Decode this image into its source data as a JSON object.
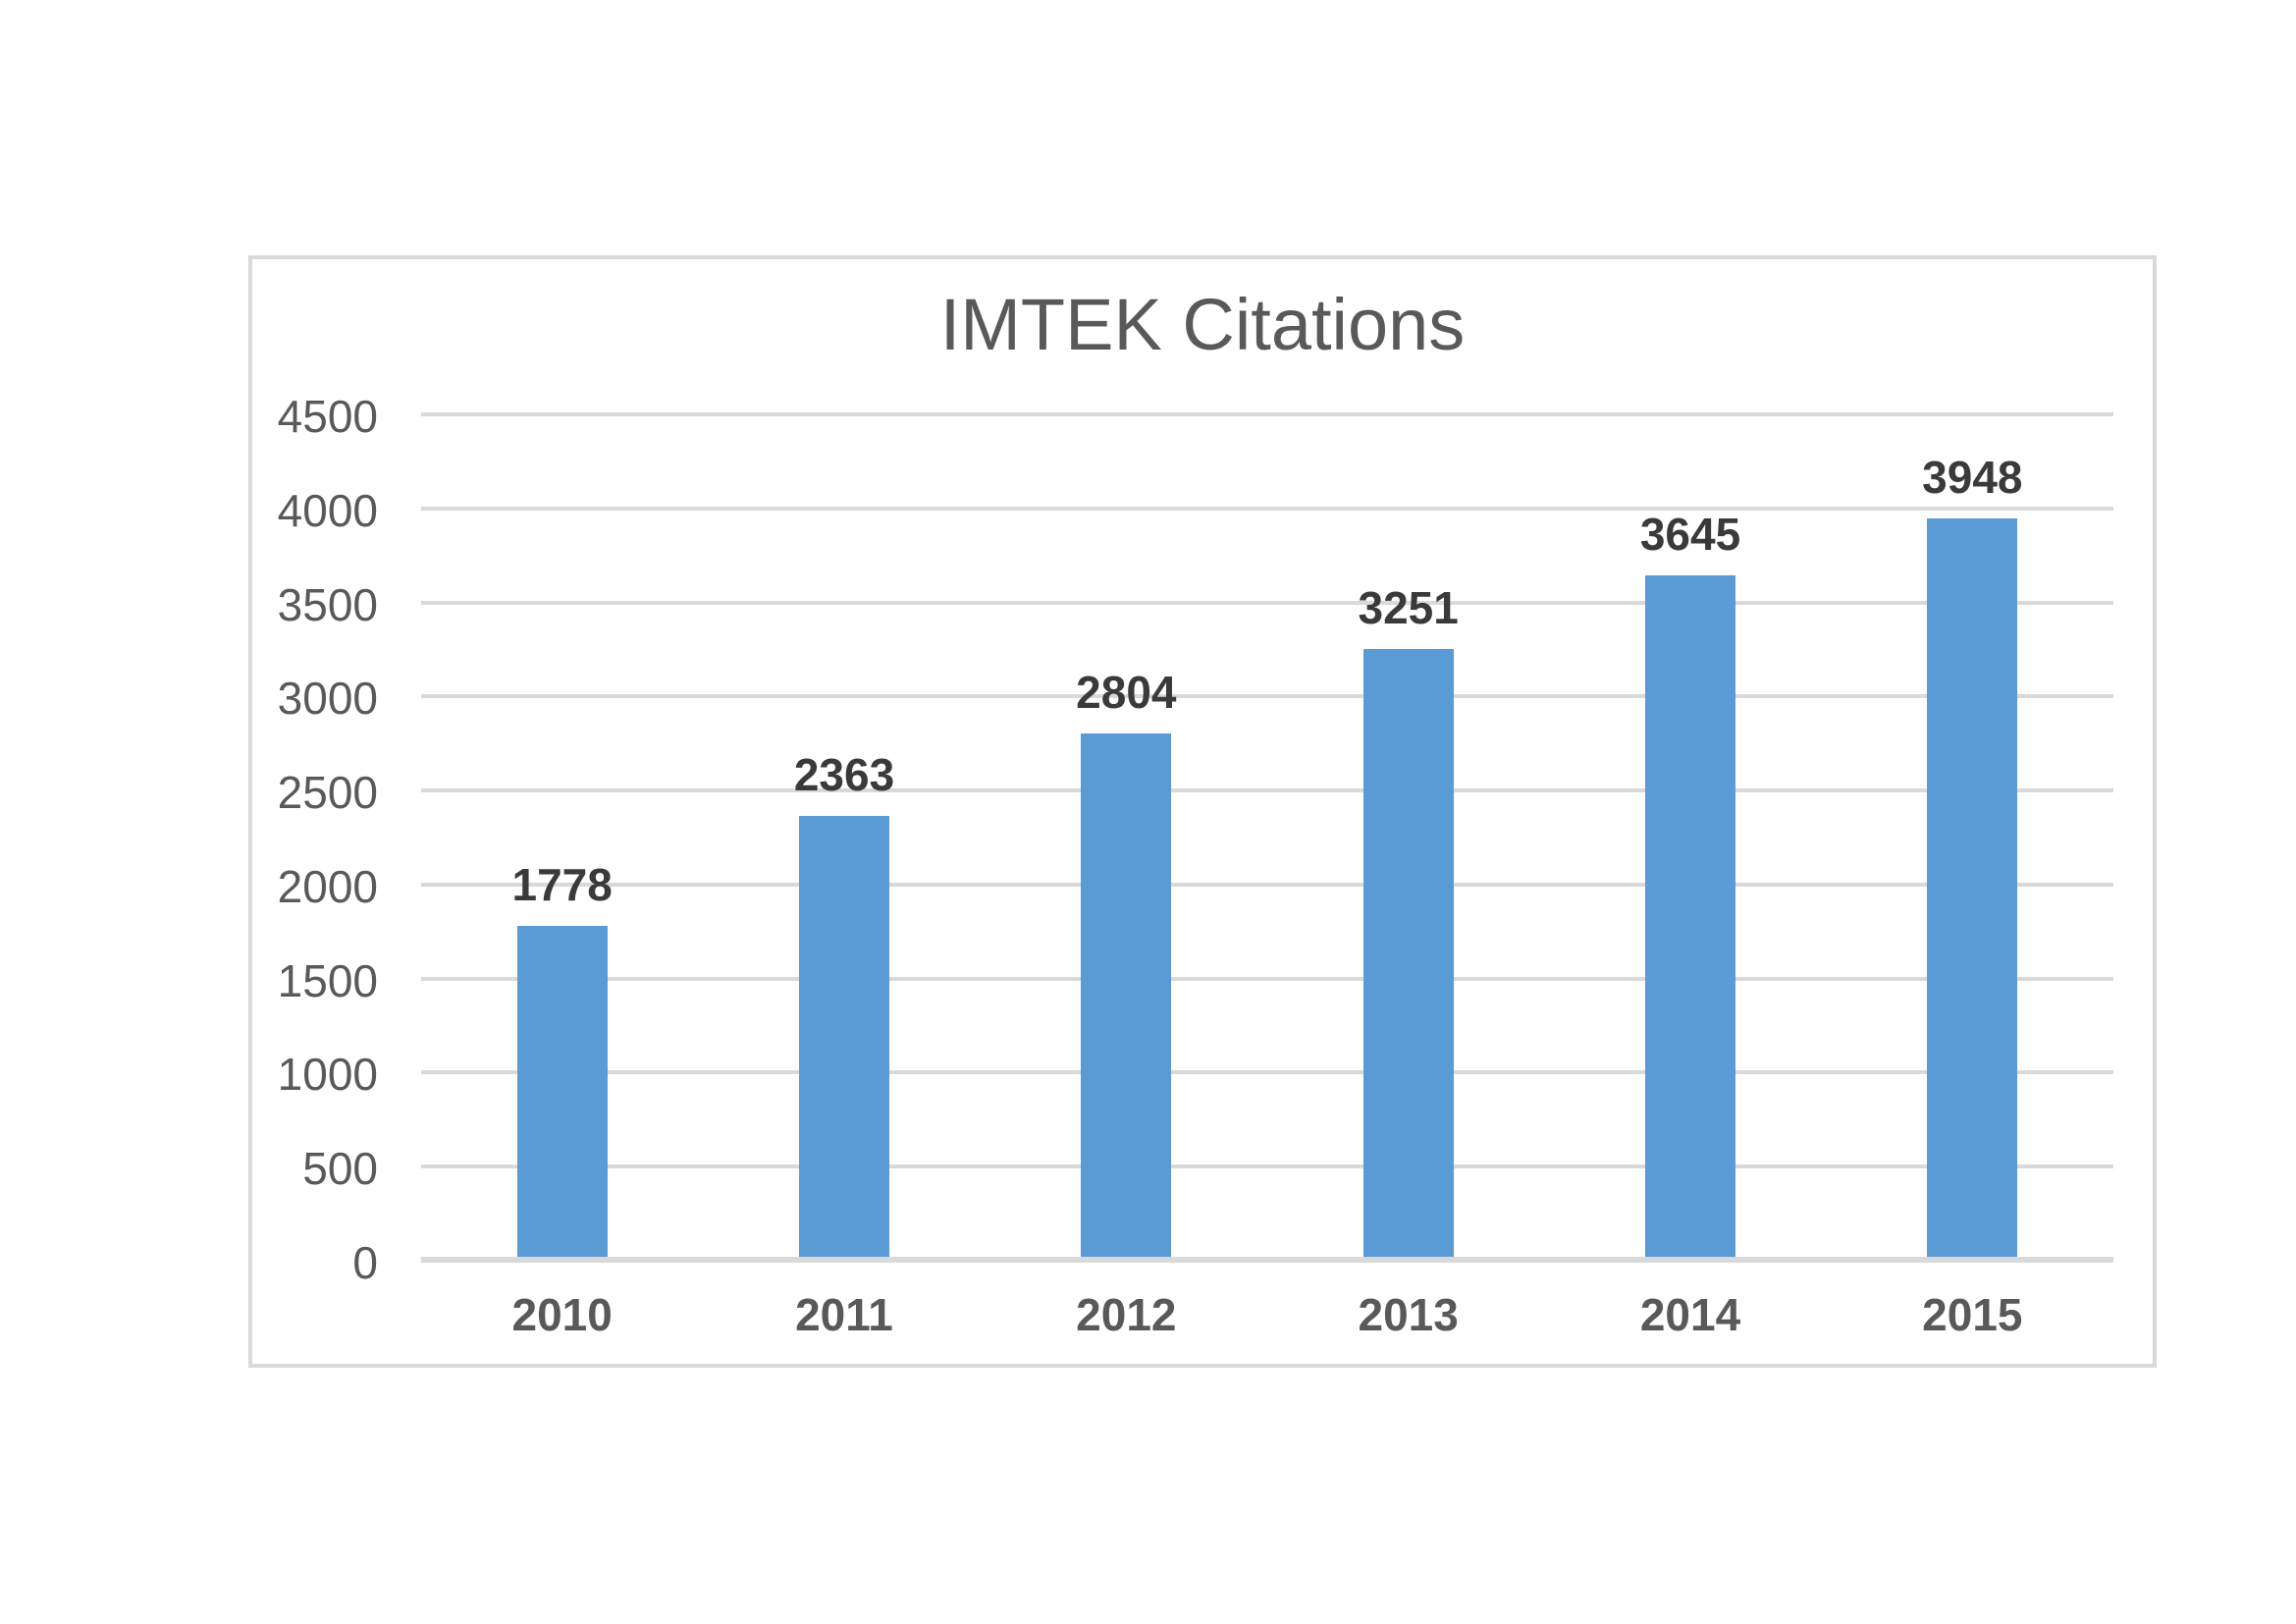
{
  "chart_data": {
    "type": "bar",
    "title": "IMTEK Citations",
    "categories": [
      "2010",
      "2011",
      "2012",
      "2013",
      "2014",
      "2015"
    ],
    "values": [
      1778,
      2363,
      2804,
      3251,
      3645,
      3948
    ],
    "data_labels": [
      "1778",
      "2363",
      "2804",
      "3251",
      "3645",
      "3948"
    ],
    "yticks": [
      "4500",
      "4000",
      "3500",
      "3000",
      "2500",
      "2000",
      "1500",
      "1000",
      "500",
      "0"
    ],
    "ylim": [
      0,
      4500
    ],
    "ytick_step": 500,
    "xlabel": "",
    "ylabel": "",
    "grid": true,
    "legend": false,
    "data_labels_shown": true
  },
  "style": {
    "bar_color": "#5B9BD5",
    "title_color": "#595959",
    "axis_label_color": "#595959",
    "data_label_color": "#3A3A3A",
    "gridline_color": "#D9D9D9",
    "axis_line_color": "#D9D9D9",
    "border_color": "#D9D9D9",
    "background": "#FFFFFF"
  }
}
